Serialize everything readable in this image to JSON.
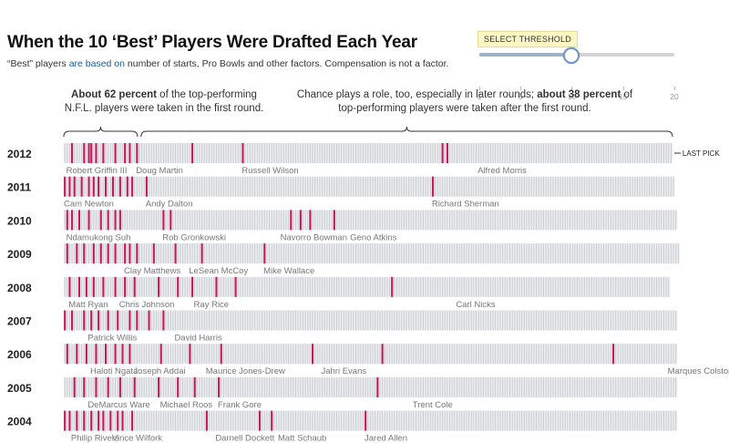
{
  "header": {
    "title": "When the 10 ‘Best’ Players Were Drafted Each Year",
    "subtitle_pre": "“Best” players ",
    "subtitle_link": "are based on",
    "subtitle_post": " number of starts, Pro Bowls and other factors. Compensation is not a factor."
  },
  "threshold": {
    "label": "SELECT THRESHOLD",
    "min": 1,
    "max": 20,
    "value": 10,
    "tick_labels": [
      "1",
      "5",
      "10",
      "15",
      "20"
    ]
  },
  "annotations": {
    "left_bold": "About 62 percent",
    "left_rest": " of the top-performing",
    "left_line2": "N.F.L. players were taken in the first round.",
    "right_line1": "Chance plays a role, too, especially in later rounds; ",
    "right_bold": "about 38 percent",
    "right_rest": " of",
    "right_line2": "top-performing players were taken after the first round.",
    "last_pick": "LAST PICK"
  },
  "chart_data": {
    "type": "strip",
    "x_axis": "pick number",
    "colors": {
      "highlight": "#c8185a",
      "pick": "#c9cdd1",
      "background": "#eceeef"
    },
    "years": [
      {
        "year": "2012",
        "total_picks": 253,
        "highlight_picks": [
          4,
          9,
          11,
          12,
          14,
          17,
          22,
          26,
          28,
          31,
          54,
          75,
          160,
          158
        ],
        "labels": [
          {
            "name": "Robert Griffin III",
            "pick": 2
          },
          {
            "name": "Doug Martin",
            "pick": 31
          },
          {
            "name": "Russell Wilson",
            "pick": 75
          },
          {
            "name": "Alfred Morris",
            "pick": 173
          }
        ]
      },
      {
        "year": "2011",
        "total_picks": 254,
        "highlight_picks": [
          1,
          3,
          5,
          8,
          11,
          13,
          15,
          18,
          21,
          24,
          27,
          29,
          35,
          154
        ],
        "labels": [
          {
            "name": "Cam Newton",
            "pick": 1
          },
          {
            "name": "Andy Dalton",
            "pick": 35
          },
          {
            "name": "Richard Sherman",
            "pick": 154
          }
        ]
      },
      {
        "year": "2010",
        "total_picks": 255,
        "highlight_picks": [
          2,
          4,
          7,
          11,
          16,
          19,
          22,
          24,
          42,
          45,
          95,
          99,
          103,
          113
        ],
        "labels": [
          {
            "name": "Ndamukong Suh",
            "pick": 2
          },
          {
            "name": "Rob Gronkowski",
            "pick": 42
          },
          {
            "name": "Navorro Bowman",
            "pick": 91
          },
          {
            "name": "Geno Atkins",
            "pick": 120
          }
        ]
      },
      {
        "year": "2009",
        "total_picks": 256,
        "highlight_picks": [
          2,
          6,
          9,
          13,
          16,
          19,
          22,
          26,
          28,
          31,
          38,
          47,
          58,
          84
        ],
        "labels": [
          {
            "name": "Clay Matthews",
            "pick": 26
          },
          {
            "name": "LeSean McCoy",
            "pick": 53
          },
          {
            "name": "Mike Wallace",
            "pick": 84
          }
        ]
      },
      {
        "year": "2008",
        "total_picks": 252,
        "highlight_picks": [
          3,
          7,
          10,
          13,
          17,
          22,
          26,
          30,
          40,
          48,
          54,
          64,
          72,
          137
        ],
        "labels": [
          {
            "name": "Matt Ryan",
            "pick": 3
          },
          {
            "name": "Chris Johnson",
            "pick": 24
          },
          {
            "name": "Ray Rice",
            "pick": 55
          },
          {
            "name": "Carl Nicks",
            "pick": 164
          }
        ]
      },
      {
        "year": "2007",
        "total_picks": 255,
        "highlight_picks": [
          1,
          4,
          9,
          12,
          15,
          19,
          23,
          28,
          31,
          36,
          42
        ],
        "labels": [
          {
            "name": "Patrick Willis",
            "pick": 11
          },
          {
            "name": "David Harris",
            "pick": 47
          }
        ]
      },
      {
        "year": "2006",
        "total_picks": 255,
        "highlight_picks": [
          2,
          6,
          10,
          14,
          18,
          22,
          25,
          28,
          41,
          53,
          66,
          104,
          133,
          229
        ],
        "labels": [
          {
            "name": "Haloti Ngata",
            "pick": 12
          },
          {
            "name": "Joseph Addai",
            "pick": 30
          },
          {
            "name": "Maurice Jones-Drew",
            "pick": 60
          },
          {
            "name": "Jahri Evans",
            "pick": 108
          },
          {
            "name": "Marques Colston",
            "pick": 252
          }
        ]
      },
      {
        "year": "2005",
        "total_picks": 255,
        "highlight_picks": [
          5,
          9,
          14,
          19,
          24,
          30,
          40,
          48,
          55,
          65,
          131
        ],
        "labels": [
          {
            "name": "DeMarcus Ware",
            "pick": 11
          },
          {
            "name": "Michael Roos",
            "pick": 41
          },
          {
            "name": "Frank Gore",
            "pick": 65
          },
          {
            "name": "Trent Cole",
            "pick": 146
          }
        ]
      },
      {
        "year": "2004",
        "total_picks": 255,
        "highlight_picks": [
          1,
          3,
          6,
          9,
          12,
          15,
          17,
          20,
          23,
          25,
          29,
          60,
          82,
          87,
          126
        ],
        "labels": [
          {
            "name": "Philip Rivers",
            "pick": 4
          },
          {
            "name": "Vince Wilfork",
            "pick": 21
          },
          {
            "name": "Darnell Dockett",
            "pick": 64
          },
          {
            "name": "Matt Schaub",
            "pick": 90
          },
          {
            "name": "Jared Allen",
            "pick": 126
          }
        ]
      }
    ]
  }
}
